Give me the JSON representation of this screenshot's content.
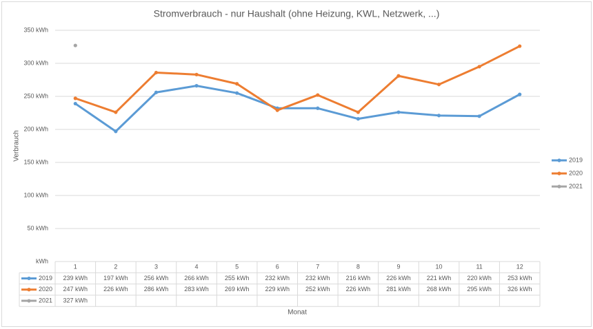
{
  "chart_data": {
    "type": "line",
    "title": "Stromverbrauch - nur Haushalt (ohne Heizung, KWL, Netzwerk, ...)",
    "x_label": "Monat",
    "y_label": "Verbrauch",
    "categories": [
      "1",
      "2",
      "3",
      "4",
      "5",
      "6",
      "7",
      "8",
      "9",
      "10",
      "11",
      "12"
    ],
    "series": [
      {
        "name": "2019",
        "color": "#5b9bd5",
        "values": [
          239,
          197,
          256,
          266,
          255,
          232,
          232,
          216,
          226,
          221,
          220,
          253
        ],
        "value_labels": [
          "239 kWh",
          "197 kWh",
          "256 kWh",
          "266 kWh",
          "255 kWh",
          "232 kWh",
          "232 kWh",
          "216 kWh",
          "226 kWh",
          "221 kWh",
          "220 kWh",
          "253 kWh"
        ]
      },
      {
        "name": "2020",
        "color": "#ed7d31",
        "values": [
          247,
          226,
          286,
          283,
          269,
          229,
          252,
          226,
          281,
          268,
          295,
          326
        ],
        "value_labels": [
          "247 kWh",
          "226 kWh",
          "286 kWh",
          "283 kWh",
          "269 kWh",
          "229 kWh",
          "252 kWh",
          "226 kWh",
          "281 kWh",
          "268 kWh",
          "295 kWh",
          "326 kWh"
        ]
      },
      {
        "name": "2021",
        "color": "#a5a5a5",
        "values": [
          327,
          null,
          null,
          null,
          null,
          null,
          null,
          null,
          null,
          null,
          null,
          null
        ],
        "value_labels": [
          "327 kWh",
          null,
          null,
          null,
          null,
          null,
          null,
          null,
          null,
          null,
          null,
          null
        ]
      }
    ],
    "ylim": [
      0,
      350
    ],
    "yticks": [
      {
        "value": 0,
        "label": "kWh"
      },
      {
        "value": 50,
        "label": "50 kWh"
      },
      {
        "value": 100,
        "label": "100 kWh"
      },
      {
        "value": 150,
        "label": "150 kWh"
      },
      {
        "value": 200,
        "label": "200 kWh"
      },
      {
        "value": 250,
        "label": "250 kWh"
      },
      {
        "value": 300,
        "label": "300 kWh"
      },
      {
        "value": 350,
        "label": "350 kWh"
      }
    ],
    "grid": true,
    "legend": "right",
    "data_table": true
  }
}
